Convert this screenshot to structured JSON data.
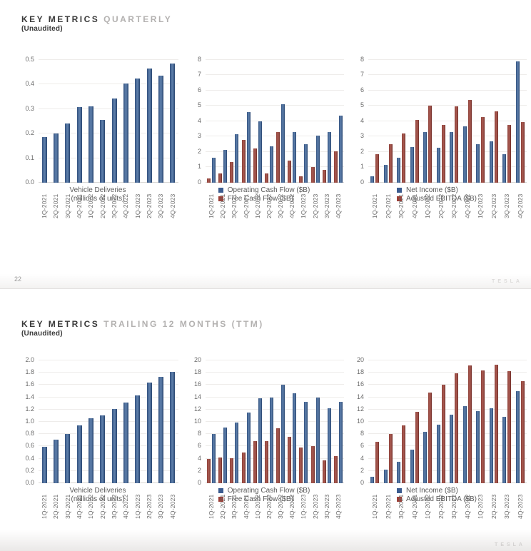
{
  "colors": {
    "bar_blue_left": "#31507e",
    "bar_blue_mid": "#5a7ba7",
    "bar_blue_right": "#25426d",
    "bar_red_left": "#8d4039",
    "bar_red_mid": "#a6584f",
    "bar_red_right": "#6f2c27",
    "legend_blue": "#3b5c90",
    "legend_red": "#9b3f37"
  },
  "page1": {
    "title_bold": "KEY METRICS",
    "title_light": "QUARTERLY",
    "subtitle": "(Unaudited)",
    "page_number": "22",
    "watermark": "TESLA"
  },
  "page2": {
    "title_bold": "KEY METRICS",
    "title_light": "TRAILING 12 MONTHS (TTM)",
    "subtitle": "(Unaudited)",
    "watermark": "TESLA"
  },
  "chart_data": [
    {
      "type": "bar",
      "categories": [
        "1Q-2021",
        "2Q-2021",
        "3Q-2021",
        "4Q-2021",
        "1Q-2022",
        "2Q-2022",
        "3Q-2022",
        "4Q-2022",
        "1Q-2023",
        "2Q-2023",
        "3Q-2023",
        "4Q-2023"
      ],
      "series": [
        {
          "name": "Vehicle Deliveries",
          "color": "blue",
          "values": [
            0.185,
            0.201,
            0.241,
            0.309,
            0.31,
            0.255,
            0.344,
            0.405,
            0.423,
            0.466,
            0.435,
            0.485
          ]
        }
      ],
      "caption": [
        "Vehicle Deliveries",
        "(millions of units)"
      ],
      "legend": null,
      "ylim": [
        0,
        0.5
      ],
      "ystep": 0.1,
      "decimals": 1,
      "grid": true,
      "xlabel": "",
      "ylabel": ""
    },
    {
      "type": "bar",
      "categories": [
        "1Q-2021",
        "2Q-2021",
        "3Q-2021",
        "4Q-2021",
        "1Q-2022",
        "2Q-2022",
        "3Q-2022",
        "4Q-2022",
        "1Q-2023",
        "2Q-2023",
        "3Q-2023",
        "4Q-2023"
      ],
      "series": [
        {
          "name": "Free Cash Flow ($B)",
          "color": "red",
          "values": [
            0.29,
            0.62,
            1.33,
            2.78,
            2.23,
            0.62,
            3.3,
            1.42,
            0.44,
            1.01,
            0.85,
            2.06
          ]
        },
        {
          "name": "Operating Cash Flow ($B)",
          "color": "blue",
          "values": [
            1.64,
            2.12,
            3.15,
            4.59,
            4.0,
            2.35,
            5.1,
            3.28,
            2.51,
            3.06,
            3.31,
            4.37
          ]
        }
      ],
      "caption": null,
      "legend": [
        {
          "color": "blue",
          "label": "Operating Cash Flow ($B)"
        },
        {
          "color": "red",
          "label": "Free Cash Flow ($B)"
        }
      ],
      "ylim": [
        0,
        8
      ],
      "ystep": 1,
      "decimals": 0,
      "grid": true,
      "xlabel": "",
      "ylabel": ""
    },
    {
      "type": "bar",
      "categories": [
        "1Q-2021",
        "2Q-2021",
        "3Q-2021",
        "4Q-2021",
        "1Q-2022",
        "2Q-2022",
        "3Q-2022",
        "4Q-2022",
        "1Q-2023",
        "2Q-2023",
        "3Q-2023",
        "4Q-2023"
      ],
      "series": [
        {
          "name": "Net Income ($B)",
          "color": "blue",
          "values": [
            0.44,
            1.14,
            1.62,
            2.32,
            3.32,
            2.26,
            3.29,
            3.69,
            2.51,
            2.7,
            1.85,
            7.93
          ]
        },
        {
          "name": "Adjusted EBITDA ($B)",
          "color": "red",
          "values": [
            1.84,
            2.49,
            3.2,
            4.09,
            5.02,
            3.79,
            4.97,
            5.4,
            4.27,
            4.65,
            3.76,
            3.95
          ]
        }
      ],
      "caption": null,
      "legend": [
        {
          "color": "blue",
          "label": "Net Income ($B)"
        },
        {
          "color": "red",
          "label": "Adjusted EBITDA ($B)"
        }
      ],
      "ylim": [
        0,
        8
      ],
      "ystep": 1,
      "decimals": 0,
      "grid": true,
      "xlabel": "",
      "ylabel": ""
    },
    {
      "type": "bar",
      "categories": [
        "1Q-2021",
        "2Q-2021",
        "3Q-2021",
        "4Q-2021",
        "1Q-2022",
        "2Q-2022",
        "3Q-2022",
        "4Q-2022",
        "1Q-2023",
        "2Q-2023",
        "3Q-2023",
        "4Q-2023"
      ],
      "series": [
        {
          "name": "Vehicle Deliveries",
          "color": "blue",
          "values": [
            0.59,
            0.71,
            0.8,
            0.94,
            1.06,
            1.11,
            1.21,
            1.31,
            1.43,
            1.64,
            1.73,
            1.81
          ]
        }
      ],
      "caption": [
        "Vehicle Deliveries",
        "(millions of units)"
      ],
      "legend": null,
      "ylim": [
        0,
        2.0
      ],
      "ystep": 0.2,
      "decimals": 1,
      "grid": true,
      "xlabel": "",
      "ylabel": ""
    },
    {
      "type": "bar",
      "categories": [
        "1Q-2021",
        "2Q-2021",
        "3Q-2021",
        "4Q-2021",
        "1Q-2022",
        "2Q-2022",
        "3Q-2022",
        "4Q-2022",
        "1Q-2023",
        "2Q-2023",
        "3Q-2023",
        "4Q-2023"
      ],
      "series": [
        {
          "name": "Free Cash Flow ($B)",
          "color": "red",
          "values": [
            3.9,
            4.2,
            4.1,
            5.0,
            6.9,
            6.9,
            8.9,
            7.6,
            5.8,
            6.1,
            3.7,
            4.4
          ]
        },
        {
          "name": "Operating Cash Flow ($B)",
          "color": "blue",
          "values": [
            8.0,
            9.1,
            9.9,
            11.5,
            13.8,
            14.0,
            16.0,
            14.7,
            13.2,
            13.9,
            12.2,
            13.3
          ]
        }
      ],
      "caption": null,
      "legend": [
        {
          "color": "blue",
          "label": "Operating Cash Flow ($B)"
        },
        {
          "color": "red",
          "label": "Free Cash Flow ($B)"
        }
      ],
      "ylim": [
        0,
        20
      ],
      "ystep": 2,
      "decimals": 0,
      "grid": true,
      "xlabel": "",
      "ylabel": ""
    },
    {
      "type": "bar",
      "categories": [
        "1Q-2021",
        "2Q-2021",
        "3Q-2021",
        "4Q-2021",
        "1Q-2022",
        "2Q-2022",
        "3Q-2022",
        "4Q-2022",
        "1Q-2023",
        "2Q-2023",
        "3Q-2023",
        "4Q-2023"
      ],
      "series": [
        {
          "name": "Net Income ($B)",
          "color": "blue",
          "values": [
            1.1,
            2.2,
            3.5,
            5.5,
            8.4,
            9.5,
            11.2,
            12.6,
            11.8,
            12.2,
            10.8,
            15.0
          ]
        },
        {
          "name": "Adjusted EBITDA ($B)",
          "color": "red",
          "values": [
            6.7,
            8.0,
            9.4,
            11.6,
            14.8,
            16.1,
            17.9,
            19.2,
            18.4,
            19.3,
            18.2,
            16.6
          ]
        }
      ],
      "caption": null,
      "legend": [
        {
          "color": "blue",
          "label": "Net Income ($B)"
        },
        {
          "color": "red",
          "label": "Adjusted EBITDA ($B)"
        }
      ],
      "ylim": [
        0,
        20
      ],
      "ystep": 2,
      "decimals": 0,
      "grid": true,
      "xlabel": "",
      "ylabel": ""
    }
  ]
}
